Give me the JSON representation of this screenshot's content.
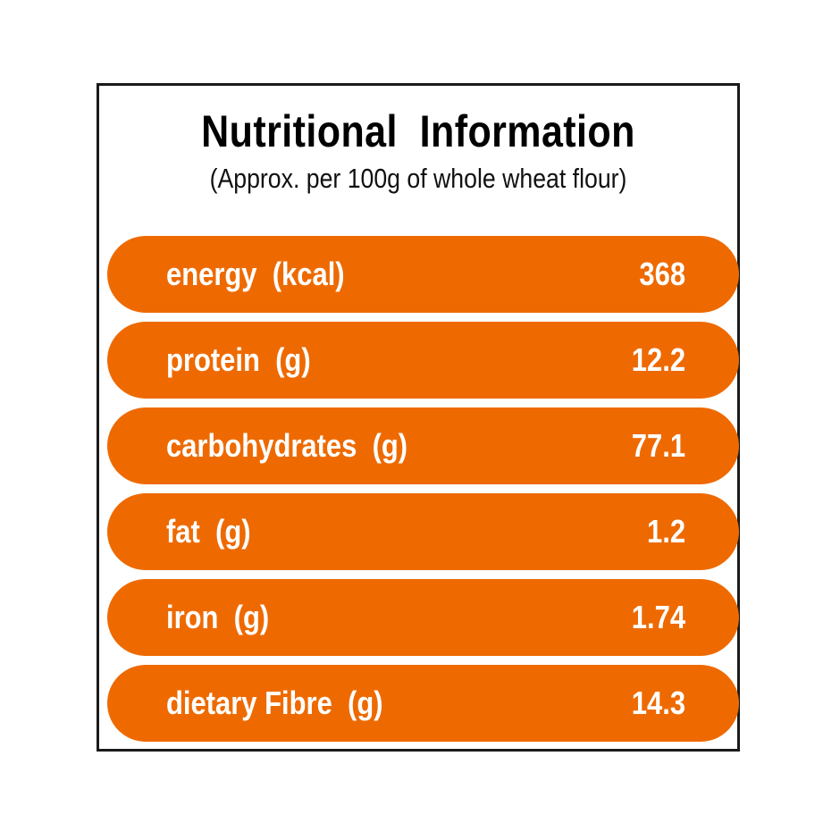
{
  "panel": {
    "title": "Nutritional  Information",
    "subtitle": "(Approx. per 100g of whole wheat flour)"
  },
  "rows": [
    {
      "label": "energy  (kcal)",
      "value": "368"
    },
    {
      "label": "protein  (g)",
      "value": "12.2"
    },
    {
      "label": "carbohydrates  (g)",
      "value": "77.1"
    },
    {
      "label": "fat  (g)",
      "value": "1.2"
    },
    {
      "label": "iron  (g)",
      "value": "1.74"
    },
    {
      "label": "dietary Fibre  (g)",
      "value": "14.3"
    }
  ],
  "colors": {
    "row_background": "#ee6a00",
    "row_text": "#ffffff",
    "border": "#1a1a1a"
  }
}
